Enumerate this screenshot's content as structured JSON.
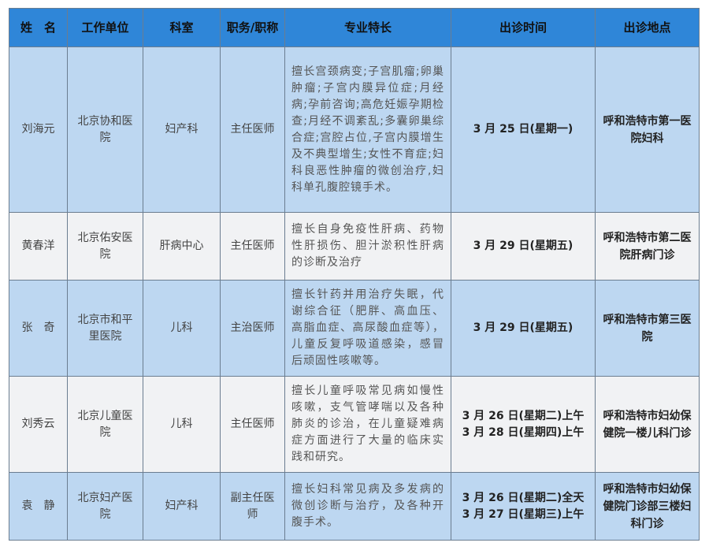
{
  "headers": [
    "姓　名",
    "工作单位",
    "科室",
    "职务/职称",
    "专业特长",
    "出诊时间",
    "出诊地点"
  ],
  "rows": [
    {
      "name": "刘海元",
      "unit": "北京协和医院",
      "dept": "妇产科",
      "title": "主任医师",
      "specialty": "擅长宫颈病变;子宫肌瘤;卵巢肿瘤;子宫内膜异位症;月经病;孕前咨询;高危妊娠孕期检查;月经不调紊乱;多囊卵巢综合症;宫腔占位,子宫内膜增生及不典型增生;女性不育症;妇科良恶性肿瘤的微创治疗,妇科单孔腹腔镜手术。",
      "time": [
        "3 月 25 日(星期一)"
      ],
      "place": "呼和浩特市第一医院妇科"
    },
    {
      "name": "黄春洋",
      "unit": "北京佑安医院",
      "dept": "肝病中心",
      "title": "主任医师",
      "specialty": "擅长自身免疫性肝病、药物性肝损伤、胆汁淤积性肝病的诊断及治疗",
      "time": [
        "3 月 29 日(星期五)"
      ],
      "place": "呼和浩特市第二医院肝病门诊"
    },
    {
      "name": "张　奇",
      "unit": "北京市和平里医院",
      "dept": "儿科",
      "title": "主治医师",
      "specialty": "擅长针药并用治疗失眠，代谢综合征（肥胖、高血压、高脂血症、高尿酸血症等），儿童反复呼吸道感染，感冒后顽固性咳嗽等。",
      "time": [
        "3 月 29 日(星期五)"
      ],
      "place": "呼和浩特市第三医院"
    },
    {
      "name": "刘秀云",
      "unit": "北京儿童医院",
      "dept": "儿科",
      "title": "主任医师",
      "specialty": "擅长儿童呼吸常见病如慢性咳嗽，支气管哮喘以及各种肺炎的诊治，在儿童疑难病症方面进行了大量的临床实践和研究。",
      "time": [
        "3 月 26 日(星期二)上午",
        "3 月 28 日(星期四)上午"
      ],
      "place": "呼和浩特市妇幼保健院一楼儿科门诊"
    },
    {
      "name": "袁　静",
      "unit": "北京妇产医院",
      "dept": "妇产科",
      "title": "副主任医师",
      "specialty": "擅长妇科常见病及多发病的微创诊断与治疗，及各种开腹手术。",
      "time": [
        "3 月 26 日(星期二)全天",
        "3 月 27 日(星期三)上午"
      ],
      "place": "呼和浩特市妇幼保健院门诊部三楼妇科门诊"
    }
  ]
}
